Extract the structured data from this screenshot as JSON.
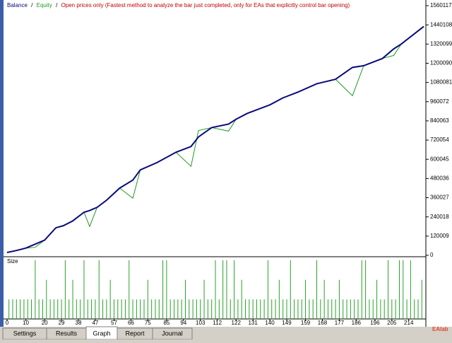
{
  "chart_data": [
    {
      "type": "line",
      "separator": "/",
      "note": "Open prices only (Fastest method to analyze the bar just completed, only for EAs that explicitly control bar opening)",
      "x": [
        0,
        5,
        10,
        15,
        20,
        26,
        30,
        35,
        41,
        44,
        48,
        53,
        60,
        67,
        71,
        80,
        90,
        98,
        102,
        109,
        118,
        122,
        128,
        140,
        147,
        155,
        165,
        175,
        184,
        190,
        200,
        206,
        210,
        222
      ],
      "series": [
        {
          "name": "Equity",
          "color": "#1f9a1f",
          "values": [
            17600,
            30000,
            45000,
            50000,
            95000,
            172000,
            185000,
            215000,
            269000,
            180000,
            300000,
            344000,
            420000,
            357000,
            534000,
            580000,
            644000,
            556000,
            780000,
            798000,
            776000,
            850000,
            887000,
            940000,
            984000,
            1020000,
            1072000,
            1100000,
            997000,
            1185000,
            1230000,
            1249000,
            1320000,
            1430000
          ]
        },
        {
          "name": "Balance",
          "color": "#0a0a7a",
          "values": [
            17600,
            30000,
            45000,
            70000,
            95000,
            172000,
            185000,
            215000,
            269000,
            280000,
            300000,
            344000,
            420000,
            470000,
            534000,
            580000,
            644000,
            680000,
            740000,
            798000,
            820000,
            850000,
            887000,
            940000,
            984000,
            1020000,
            1072000,
            1100000,
            1174000,
            1185000,
            1230000,
            1290000,
            1320000,
            1430000
          ]
        }
      ],
      "xlim": [
        0,
        222
      ],
      "xticks": [
        0,
        10,
        20,
        29,
        38,
        47,
        57,
        66,
        75,
        85,
        94,
        103,
        112,
        122,
        131,
        140,
        149,
        159,
        168,
        177,
        186,
        196,
        205,
        214
      ],
      "ylim": [
        0,
        1560117
      ],
      "yticks": [
        0,
        120009,
        240018,
        360027,
        480036,
        600045,
        720054,
        840063,
        960072,
        1080081,
        1200090,
        1320099,
        1440108,
        1560117
      ]
    },
    {
      "type": "bar",
      "title": "Size",
      "color": "#2aa02a",
      "ylim": [
        0,
        3
      ],
      "values": [
        1,
        1,
        1,
        1,
        1,
        1,
        1,
        3,
        1,
        1,
        2,
        1,
        1,
        1,
        1,
        3,
        1,
        2,
        1,
        1,
        3,
        1,
        1,
        1,
        3,
        1,
        1,
        2,
        1,
        1,
        1,
        1,
        3,
        1,
        1,
        1,
        1,
        2,
        1,
        1,
        1,
        3,
        3,
        1,
        1,
        1,
        1,
        2,
        1,
        1,
        1,
        1,
        2,
        1,
        1,
        3,
        1,
        3,
        3,
        1,
        3,
        1,
        2,
        1,
        1,
        1,
        1,
        1,
        1,
        3,
        1,
        1,
        2,
        1,
        1,
        3,
        1,
        1,
        1,
        2,
        1,
        1,
        3,
        1,
        2,
        1,
        1,
        1,
        2,
        1,
        1,
        1,
        1,
        1,
        3,
        3,
        1,
        1,
        2,
        1,
        1,
        3,
        1,
        1,
        3,
        3,
        1,
        3,
        1,
        1,
        2
      ]
    }
  ],
  "tabs": [
    {
      "label": "Settings"
    },
    {
      "label": "Results"
    },
    {
      "label": "Graph",
      "active": true
    },
    {
      "label": "Report"
    },
    {
      "label": "Journal"
    }
  ],
  "watermark": "EAlab"
}
